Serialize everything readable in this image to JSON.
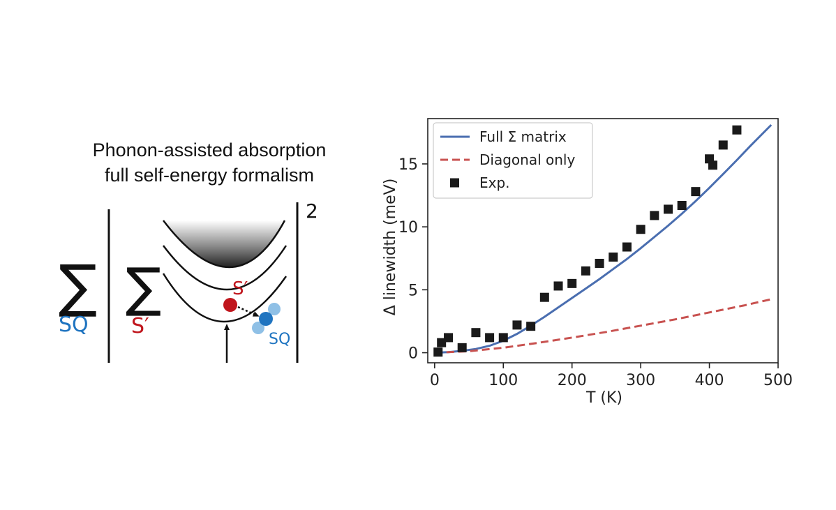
{
  "schematic": {
    "title_line1": "Phonon-assisted absorption",
    "title_line2": "full self-energy formalism",
    "outer_sum_symbol": "∑",
    "outer_sum_index": "SQ",
    "inner_sum_symbol": "∑",
    "inner_sum_index": "S′",
    "exponent": "2",
    "intermediate_state_label": "S′",
    "final_state_label": "SQ",
    "colors": {
      "red": "#c0151c",
      "blue": "#1f74c0",
      "light_blue": "#8fc0e6"
    }
  },
  "chart_data": {
    "type": "line",
    "xlabel": "T (K)",
    "ylabel": "Δ linewidth (meV)",
    "xlim": [
      -10,
      500
    ],
    "ylim": [
      -0.8,
      18.6
    ],
    "xticks": [
      0,
      100,
      200,
      300,
      400,
      500
    ],
    "yticks": [
      0,
      5,
      10,
      15
    ],
    "grid": false,
    "legend_position": "top-left",
    "series": [
      {
        "name": "Full Σ matrix",
        "style": "solid-line",
        "color": "#4a6eb0",
        "x": [
          0,
          20,
          40,
          60,
          80,
          100,
          120,
          140,
          160,
          180,
          200,
          220,
          240,
          260,
          280,
          300,
          320,
          340,
          360,
          380,
          400,
          420,
          440,
          460,
          490
        ],
        "y": [
          0,
          0.05,
          0.15,
          0.3,
          0.55,
          0.95,
          1.5,
          2.15,
          2.85,
          3.6,
          4.35,
          5.1,
          5.85,
          6.65,
          7.45,
          8.3,
          9.2,
          10.1,
          11.05,
          12.05,
          13.1,
          14.2,
          15.3,
          16.45,
          18.1
        ]
      },
      {
        "name": "Diagonal only",
        "style": "dashed-line",
        "color": "#c85250",
        "x": [
          0,
          50,
          100,
          150,
          200,
          250,
          300,
          350,
          400,
          450,
          490
        ],
        "y": [
          0,
          0.12,
          0.4,
          0.78,
          1.2,
          1.65,
          2.15,
          2.65,
          3.2,
          3.75,
          4.25
        ]
      },
      {
        "name": "Exp.",
        "style": "square-markers",
        "color": "#1a1a1a",
        "x": [
          5,
          10,
          20,
          40,
          60,
          80,
          100,
          120,
          140,
          160,
          180,
          200,
          220,
          240,
          260,
          280,
          300,
          320,
          340,
          360,
          380,
          400,
          405,
          420,
          440
        ],
        "y": [
          0.05,
          0.8,
          1.2,
          0.4,
          1.6,
          1.2,
          1.2,
          2.2,
          2.1,
          4.4,
          5.3,
          5.5,
          6.5,
          7.1,
          7.6,
          8.4,
          9.8,
          10.9,
          11.4,
          11.7,
          12.8,
          15.4,
          14.9,
          16.5,
          17.7
        ]
      }
    ]
  }
}
